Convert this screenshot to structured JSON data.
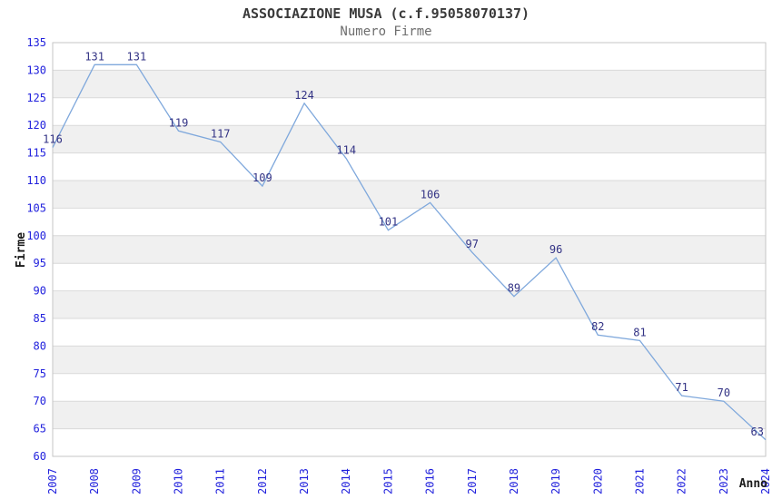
{
  "chart_data": {
    "type": "line",
    "title": "ASSOCIAZIONE MUSA (c.f.95058070137)",
    "subtitle": "Numero Firme",
    "xlabel": "Anno",
    "ylabel": "Firme",
    "categories": [
      "2007",
      "2008",
      "2009",
      "2010",
      "2011",
      "2012",
      "2013",
      "2014",
      "2015",
      "2016",
      "2017",
      "2018",
      "2019",
      "2020",
      "2021",
      "2022",
      "2023",
      "2024"
    ],
    "values": [
      116,
      131,
      131,
      119,
      117,
      109,
      124,
      114,
      101,
      106,
      97,
      89,
      96,
      82,
      81,
      71,
      70,
      63
    ],
    "ylim": [
      60,
      135
    ],
    "ytick_step": 5,
    "grid": "horizontal",
    "alternating_row_bands": true,
    "legend_position": "none",
    "data_labels_shown": true,
    "x_tick_rotation": -90,
    "colors": {
      "line": "#7fa8dc",
      "tick_labels": "#2222dd",
      "data_labels": "#333385",
      "band": "#f0f0f0",
      "grid": "#d9d9d9",
      "border": "#c6c6c6",
      "title": "#3a3a3a",
      "subtitle": "#6e6e6e",
      "axis_titles": "#1a1a1a",
      "background": "#ffffff"
    }
  }
}
